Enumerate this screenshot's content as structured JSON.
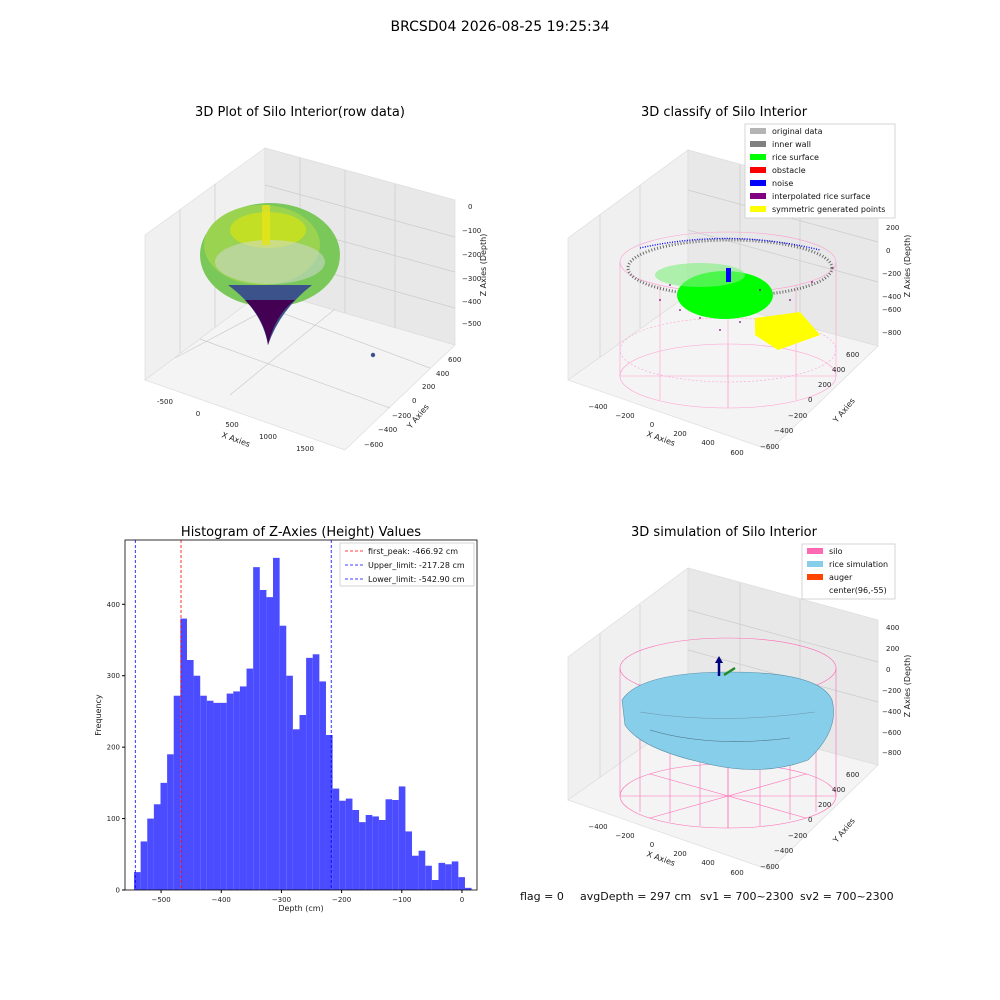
{
  "suptitle": "BRCSD04 2026-08-25 19:25:34",
  "footer": {
    "flag": "flag = 0",
    "avg": "avgDepth = 297 cm",
    "sv1": "sv1 = 700~2300",
    "sv2": "sv2 = 700~2300"
  },
  "panel1": {
    "title": "3D Plot of Silo Interior(row data)",
    "xlabel": "X Axies",
    "ylabel": "Y Axies",
    "zlabel": "Z Axies (Depth)",
    "xticks": [
      "-500",
      "0",
      "500",
      "1000",
      "1500"
    ],
    "yticks": [
      "600",
      "400",
      "200",
      "0",
      "−200",
      "−400",
      "−600"
    ],
    "zticks": [
      "0",
      "−100",
      "−200",
      "−300",
      "−400",
      "−500"
    ]
  },
  "panel2": {
    "title": "3D classify of Silo Interior",
    "xlabel": "X Axies",
    "ylabel": "Y Axies",
    "zlabel": "Z Axies (Depth)",
    "xticks": [
      "−400",
      "−200",
      "0",
      "200",
      "400",
      "600"
    ],
    "yticks": [
      "600",
      "400",
      "200",
      "0",
      "−200",
      "−400",
      "−600"
    ],
    "zticks": [
      "200",
      "0",
      "−200",
      "−400",
      "−600",
      "−800"
    ],
    "legend": [
      {
        "label": "original data",
        "color": "#b4b4b4"
      },
      {
        "label": "inner wall",
        "color": "#808080"
      },
      {
        "label": "rice surface",
        "color": "#00ff00"
      },
      {
        "label": "obstacle",
        "color": "#ff0000"
      },
      {
        "label": "noise",
        "color": "#0000ff"
      },
      {
        "label": "interpolated rice surface",
        "color": "#800080"
      },
      {
        "label": "symmetric generated points",
        "color": "#ffff00"
      }
    ]
  },
  "panel4": {
    "title": "3D simulation of Silo Interior",
    "xlabel": "X Axies",
    "ylabel": "Y Axies",
    "zlabel": "Z Axies (Depth)",
    "xticks": [
      "−400",
      "−200",
      "0",
      "200",
      "400",
      "600"
    ],
    "yticks": [
      "600",
      "400",
      "200",
      "0",
      "−200",
      "−400",
      "−600"
    ],
    "zticks": [
      "400",
      "200",
      "0",
      "−200",
      "−400",
      "−600",
      "−800"
    ],
    "legend": [
      {
        "label": "silo",
        "color": "#ff69b4"
      },
      {
        "label": "rice simulation",
        "color": "#87ceeb"
      },
      {
        "label": "auger",
        "color": "#ff4500"
      },
      {
        "label": "center(96,-55)",
        "color": ""
      }
    ]
  },
  "chart_data": {
    "type": "bar",
    "title": "Histogram of Z-Axies (Height) Values",
    "xlabel": "Depth (cm)",
    "ylabel": "Frequency",
    "bar_color": "#4b4bff",
    "xlim": [
      -560,
      25
    ],
    "ylim": [
      0,
      490
    ],
    "xticks": [
      -500,
      -400,
      -300,
      -200,
      -100,
      0
    ],
    "xtick_labels": [
      "−500",
      "−400",
      "−300",
      "−200",
      "−100",
      "0"
    ],
    "yticks": [
      0,
      100,
      200,
      300,
      400
    ],
    "bin_start": -545,
    "bin_width": 11,
    "values": [
      25,
      68,
      100,
      120,
      150,
      190,
      272,
      380,
      322,
      300,
      272,
      265,
      262,
      262,
      275,
      278,
      285,
      310,
      452,
      420,
      410,
      465,
      370,
      300,
      225,
      245,
      325,
      330,
      292,
      217,
      142,
      125,
      128,
      112,
      95,
      105,
      103,
      98,
      127,
      126,
      145,
      82,
      48,
      55,
      34,
      14,
      38,
      36,
      40,
      18,
      3
    ],
    "lines": [
      {
        "label": "first_peak: -466.92 cm",
        "x": -466.92,
        "color": "#ff0000"
      },
      {
        "label": "Upper_limit: -217.28 cm",
        "x": -217.28,
        "color": "#0000ff"
      },
      {
        "label": "Lower_limit: -542.90 cm",
        "x": -542.9,
        "color": "#0000ff"
      }
    ]
  }
}
